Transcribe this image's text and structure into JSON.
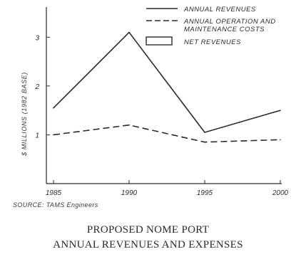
{
  "chart_data": {
    "type": "line",
    "x": [
      1985,
      1990,
      1995,
      2000
    ],
    "xticks": [
      "1985",
      "1990",
      "1995",
      "2000"
    ],
    "yticks": [
      "1",
      "2",
      "3"
    ],
    "ylabel": "$ MILLIONS (1982 BASE)",
    "ylim": [
      0,
      3.5
    ],
    "series": [
      {
        "name": "ANNUAL REVENUES",
        "style": "solid",
        "values": [
          1.55,
          3.1,
          1.05,
          1.5
        ]
      },
      {
        "name": "ANNUAL OPERATION AND MAINTENANCE COSTS",
        "style": "dashed",
        "values": [
          1.0,
          1.2,
          0.85,
          0.9
        ]
      }
    ],
    "legend": [
      {
        "line1": "ANNUAL REVENUES",
        "swatch": "solid-line"
      },
      {
        "line1": "ANNUAL OPERATION AND",
        "line2": "MAINTENANCE COSTS",
        "swatch": "dashed-line"
      },
      {
        "line1": "NET REVENUES",
        "swatch": "box"
      }
    ],
    "legend_position": "top-right",
    "grid": false
  },
  "source": "SOURCE: TAMS Engineers",
  "caption": {
    "line1": "PROPOSED NOME PORT",
    "line2": "ANNUAL REVENUES AND EXPENSES"
  },
  "colors": {
    "ink": "#2a2a2a",
    "background": "#ffffff"
  }
}
